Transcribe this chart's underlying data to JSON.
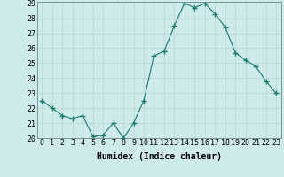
{
  "x": [
    0,
    1,
    2,
    3,
    4,
    5,
    6,
    7,
    8,
    9,
    10,
    11,
    12,
    13,
    14,
    15,
    16,
    17,
    18,
    19,
    20,
    21,
    22,
    23
  ],
  "y": [
    22.5,
    22.0,
    21.5,
    21.3,
    21.5,
    20.1,
    20.2,
    21.0,
    20.0,
    21.0,
    22.5,
    25.5,
    25.8,
    27.5,
    29.0,
    28.7,
    29.0,
    28.3,
    27.4,
    25.7,
    25.2,
    24.8,
    23.8,
    23.0
  ],
  "xlabel": "Humidex (Indice chaleur)",
  "ylim": [
    20,
    29
  ],
  "xlim": [
    -0.5,
    23.5
  ],
  "yticks": [
    20,
    21,
    22,
    23,
    24,
    25,
    26,
    27,
    28,
    29
  ],
  "xticks": [
    0,
    1,
    2,
    3,
    4,
    5,
    6,
    7,
    8,
    9,
    10,
    11,
    12,
    13,
    14,
    15,
    16,
    17,
    18,
    19,
    20,
    21,
    22,
    23
  ],
  "line_color": "#1a7a6e",
  "marker": "+",
  "marker_size": 4,
  "bg_color": "#ceeaea",
  "grid_color": "#b8d4d4",
  "xlabel_fontsize": 7,
  "tick_fontsize": 6
}
